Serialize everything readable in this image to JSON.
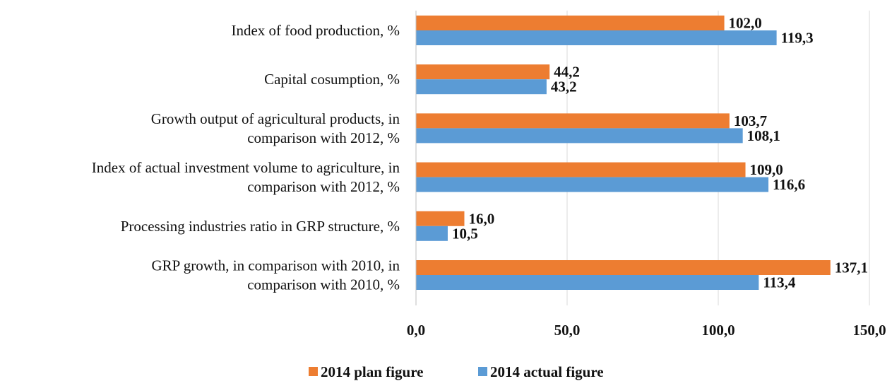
{
  "chart_data": {
    "type": "bar",
    "orientation": "horizontal",
    "categories": [
      [
        "Index of food production, %"
      ],
      [
        "Capital cosumption, %"
      ],
      [
        "Growth output of agricultural products, in",
        "comparison with 2012, %"
      ],
      [
        "Index of actual investment volume to agriculture, in",
        "comparison with 2012, %"
      ],
      [
        "Processing industries ratio in GRP structure, %"
      ],
      [
        "GRP growth, in comparison with 2010, in",
        "comparison with 2010, %"
      ]
    ],
    "series": [
      {
        "name": "2014 plan figure",
        "color": "#ED7D31",
        "values": [
          102.0,
          44.2,
          103.7,
          109.0,
          16.0,
          137.1
        ],
        "labels": [
          "102,0",
          "44,2",
          "103,7",
          "109,0",
          "16,0",
          "137,1"
        ]
      },
      {
        "name": "2014 actual figure",
        "color": "#5B9BD5",
        "values": [
          119.3,
          43.2,
          108.1,
          116.6,
          10.5,
          113.4
        ],
        "labels": [
          "119,3",
          "43,2",
          "108,1",
          "116,6",
          "10,5",
          "113,4"
        ]
      }
    ],
    "xlim": [
      0,
      150
    ],
    "xticks": [
      0,
      50,
      100,
      150
    ],
    "xtick_labels": [
      "0,0",
      "50,0",
      "100,0",
      "150,0"
    ],
    "grid": true,
    "legend_position": "bottom",
    "title": "",
    "xlabel": "",
    "ylabel": ""
  }
}
